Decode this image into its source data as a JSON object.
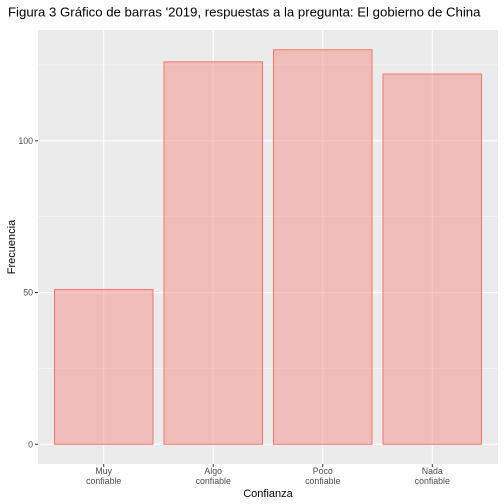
{
  "chart_data": {
    "type": "bar",
    "title": "Figura 3 Gráfico de barras '2019, respuestas a la pregunta: El gobierno de China",
    "xlabel": "Confianza",
    "ylabel": "Frecuencia",
    "categories": [
      [
        "Muy",
        "confiable"
      ],
      [
        "Algo",
        "confiable"
      ],
      [
        "Poco",
        "confiable"
      ],
      [
        "Nada",
        "confiable"
      ]
    ],
    "values": [
      51,
      126,
      130,
      122
    ],
    "yticks": [
      0,
      50,
      100
    ],
    "ylim": [
      -6.5,
      136.5
    ],
    "grid": true,
    "colors": {
      "panel": "#EBEBEB",
      "grid_major": "#FFFFFF",
      "bar_fill": "#F8766D",
      "bar_fill_opacity": 0.4,
      "bar_stroke": "#F8766D"
    }
  }
}
